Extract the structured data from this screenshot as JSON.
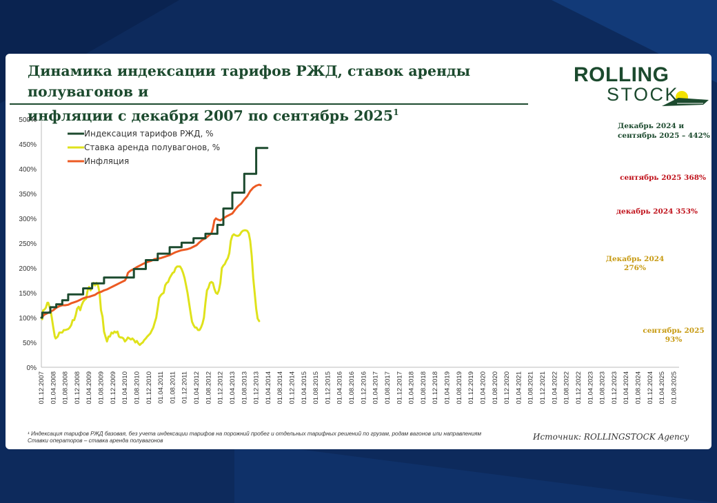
{
  "header": {
    "title_line1": "Динамика индексации тарифов РЖД, ставок аренды полувагонов и",
    "title_line2": "инфляции с декабря 2007 по сентябрь 2025",
    "title_sup": "1"
  },
  "logo": {
    "top": "ROLLING",
    "bottom": "STOCK"
  },
  "footnote": {
    "line1": "¹ Индексация тарифов РЖД базовая, без учета индексации тарифов на порожний пробег и отдельных тарифных решений по грузам, родам вагонов или направлениям",
    "line2": "Ставки операторов – ставка аренда полувагонов"
  },
  "source": "Источник: ROLLINGSTOCK Agency",
  "colors": {
    "tariff": "#1c4a2e",
    "rental": "#dfe21b",
    "inflation": "#ec5a23",
    "rental_label": "#c79a12",
    "inflation_label": "#c0131c"
  },
  "chart_data": {
    "type": "line",
    "title": "Динамика индексации тарифов РЖД, ставок аренды полувагонов и инфляции с декабря 2007 по сентябрь 2025",
    "xlabel": "",
    "ylabel": "",
    "ylim": [
      0,
      500
    ],
    "yticks": [
      "0%",
      "50%",
      "100%",
      "150%",
      "200%",
      "250%",
      "300%",
      "350%",
      "400%",
      "450%",
      "500%"
    ],
    "xticks": [
      "01.12.2007",
      "01.04.2008",
      "01.08.2008",
      "01.12.2008",
      "01.04.2009",
      "01.08.2009",
      "01.12.2009",
      "01.04.2010",
      "01.08.2010",
      "01.12.2010",
      "01.04.2011",
      "01.08.2011",
      "01.12.2011",
      "01.04.2012",
      "01.08.2012",
      "01.12.2012",
      "01.04.2013",
      "01.08.2013",
      "01.12.2013",
      "01.04.2014",
      "01.08.2014",
      "01.12.2014",
      "01.04.2015",
      "01.08.2015",
      "01.12.2015",
      "01.04.2016",
      "01.08.2016",
      "01.12.2016",
      "01.04.2017",
      "01.08.2017",
      "01.12.2017",
      "01.04.2018",
      "01.08.2018",
      "01.12.2018",
      "01.04.2019",
      "01.08.2019",
      "01.12.2019",
      "01.04.2020",
      "01.08.2020",
      "01.12.2020",
      "01.04.2021",
      "01.08.2021",
      "01.12.2021",
      "01.04.2022",
      "01.08.2022",
      "01.12.2022",
      "01.04.2023",
      "01.08.2023",
      "01.12.2023",
      "01.04.2024",
      "01.08.2024",
      "01.12.2024",
      "01.04.2025",
      "01.08.2025"
    ],
    "legend_position": "top-left",
    "series": [
      {
        "name": "Индексация тарифов РЖД, %",
        "key": "tariff",
        "points": [
          [
            0,
            100
          ],
          [
            0.3,
            100
          ],
          [
            0.3,
            110
          ],
          [
            3,
            110
          ],
          [
            3,
            121
          ],
          [
            5,
            121
          ],
          [
            5,
            127
          ],
          [
            7,
            127
          ],
          [
            7,
            135
          ],
          [
            9,
            135
          ],
          [
            9,
            147
          ],
          [
            14,
            147
          ],
          [
            14,
            159
          ],
          [
            17,
            159
          ],
          [
            17,
            169
          ],
          [
            21,
            169
          ],
          [
            21,
            181
          ],
          [
            31,
            181
          ],
          [
            31,
            198
          ],
          [
            35,
            198
          ],
          [
            35,
            216
          ],
          [
            39,
            216
          ],
          [
            39,
            229
          ],
          [
            43,
            229
          ],
          [
            43,
            242
          ],
          [
            47,
            242
          ],
          [
            47,
            251
          ],
          [
            51,
            251
          ],
          [
            51,
            260
          ],
          [
            55,
            260
          ],
          [
            55,
            269
          ],
          [
            59,
            269
          ],
          [
            59,
            287
          ],
          [
            61,
            287
          ],
          [
            61,
            320
          ],
          [
            64,
            320
          ],
          [
            64,
            352
          ],
          [
            68,
            352
          ],
          [
            68,
            390
          ],
          [
            72,
            390
          ],
          [
            72,
            442
          ],
          [
            75.75,
            442
          ]
        ]
      },
      {
        "name": "Ставка аренда полувагонов, %",
        "key": "rental",
        "points": [
          [
            0,
            100
          ],
          [
            0.3,
            97
          ],
          [
            0.6,
            115
          ],
          [
            1,
            116
          ],
          [
            1.5,
            120
          ],
          [
            2,
            130
          ],
          [
            2.3,
            130
          ],
          [
            3,
            117
          ],
          [
            3.5,
            100
          ],
          [
            4,
            80
          ],
          [
            4.5,
            62
          ],
          [
            4.8,
            58
          ],
          [
            5.5,
            62
          ],
          [
            6,
            70
          ],
          [
            7,
            70
          ],
          [
            7.5,
            75
          ],
          [
            8,
            75
          ],
          [
            9,
            77
          ],
          [
            9.5,
            80
          ],
          [
            10,
            85
          ],
          [
            10.5,
            95
          ],
          [
            11,
            95
          ],
          [
            11.5,
            105
          ],
          [
            12,
            118
          ],
          [
            12.5,
            122
          ],
          [
            13,
            115
          ],
          [
            13.5,
            125
          ],
          [
            14,
            132
          ],
          [
            14.5,
            136
          ],
          [
            15,
            138
          ],
          [
            15.5,
            155
          ],
          [
            16,
            162
          ],
          [
            16.5,
            155
          ],
          [
            17,
            162
          ],
          [
            17.5,
            170
          ],
          [
            18,
            165
          ],
          [
            18.5,
            170
          ],
          [
            19,
            165
          ],
          [
            19.5,
            150
          ],
          [
            20,
            115
          ],
          [
            20.5,
            102
          ],
          [
            21,
            72
          ],
          [
            21.5,
            62
          ],
          [
            22,
            52
          ],
          [
            22.5,
            62
          ],
          [
            23,
            62
          ],
          [
            23.5,
            70
          ],
          [
            24,
            68
          ],
          [
            24.5,
            72
          ],
          [
            25,
            70
          ],
          [
            25.5,
            72
          ],
          [
            26,
            62
          ],
          [
            26.5,
            60
          ],
          [
            27,
            60
          ],
          [
            27.5,
            58
          ],
          [
            28,
            52
          ],
          [
            28.5,
            55
          ],
          [
            29,
            60
          ],
          [
            29.5,
            58
          ],
          [
            30,
            56
          ],
          [
            30.5,
            58
          ],
          [
            31,
            55
          ],
          [
            31.5,
            50
          ],
          [
            32,
            53
          ],
          [
            32.5,
            48
          ],
          [
            33,
            45
          ],
          [
            33.5,
            48
          ],
          [
            34,
            50
          ],
          [
            34.5,
            55
          ],
          [
            35,
            58
          ],
          [
            35.5,
            62
          ],
          [
            36,
            65
          ],
          [
            36.5,
            68
          ],
          [
            37,
            74
          ],
          [
            37.5,
            80
          ],
          [
            38,
            90
          ],
          [
            38.5,
            100
          ],
          [
            39,
            120
          ],
          [
            39.5,
            140
          ],
          [
            40,
            145
          ],
          [
            40.5,
            148
          ],
          [
            41,
            150
          ],
          [
            41.5,
            165
          ],
          [
            42,
            170
          ],
          [
            42.5,
            172
          ],
          [
            43,
            180
          ],
          [
            43.5,
            185
          ],
          [
            44,
            190
          ],
          [
            44.5,
            192
          ],
          [
            45,
            200
          ],
          [
            45.5,
            203
          ],
          [
            46,
            203
          ],
          [
            46.5,
            203
          ],
          [
            47,
            198
          ],
          [
            47.5,
            190
          ],
          [
            48,
            180
          ],
          [
            48.5,
            165
          ],
          [
            49,
            150
          ],
          [
            49.5,
            130
          ],
          [
            50,
            110
          ],
          [
            50.5,
            92
          ],
          [
            51,
            85
          ],
          [
            51.5,
            80
          ],
          [
            52,
            80
          ],
          [
            52.5,
            75
          ],
          [
            53,
            75
          ],
          [
            53.5,
            80
          ],
          [
            54,
            88
          ],
          [
            54.5,
            100
          ],
          [
            55,
            130
          ],
          [
            55.5,
            155
          ],
          [
            56,
            160
          ],
          [
            56.5,
            170
          ],
          [
            57,
            172
          ],
          [
            57.5,
            170
          ],
          [
            58,
            158
          ],
          [
            58.5,
            150
          ],
          [
            59,
            148
          ],
          [
            59.5,
            155
          ],
          [
            60,
            170
          ],
          [
            60.5,
            200
          ],
          [
            61,
            205
          ],
          [
            61.5,
            208
          ],
          [
            62,
            215
          ],
          [
            62.5,
            220
          ],
          [
            63,
            230
          ],
          [
            63.5,
            255
          ],
          [
            64,
            265
          ],
          [
            64.5,
            268
          ],
          [
            65,
            266
          ],
          [
            65.5,
            265
          ],
          [
            66,
            265
          ],
          [
            66.5,
            267
          ],
          [
            67,
            272
          ],
          [
            67.5,
            275
          ],
          [
            68,
            276
          ],
          [
            68.5,
            276
          ],
          [
            69,
            275
          ],
          [
            69.5,
            270
          ],
          [
            70,
            255
          ],
          [
            70.5,
            225
          ],
          [
            71,
            180
          ],
          [
            71.5,
            150
          ],
          [
            72,
            118
          ],
          [
            72.5,
            98
          ],
          [
            73,
            93
          ]
        ]
      },
      {
        "name": "Инфляция",
        "key": "inflation",
        "points": [
          [
            0,
            100
          ],
          [
            1,
            106
          ],
          [
            2,
            109
          ],
          [
            3,
            112
          ],
          [
            4,
            115
          ],
          [
            5,
            120
          ],
          [
            6,
            123
          ],
          [
            7,
            125
          ],
          [
            8,
            125
          ],
          [
            9,
            126
          ],
          [
            10,
            129
          ],
          [
            11,
            131
          ],
          [
            12,
            133
          ],
          [
            13,
            136
          ],
          [
            14,
            139
          ],
          [
            15,
            141
          ],
          [
            16,
            142
          ],
          [
            17,
            144
          ],
          [
            18,
            146
          ],
          [
            19,
            150
          ],
          [
            20,
            152
          ],
          [
            21,
            155
          ],
          [
            22,
            157
          ],
          [
            23,
            160
          ],
          [
            24,
            163
          ],
          [
            25,
            166
          ],
          [
            26,
            169
          ],
          [
            27,
            172
          ],
          [
            28,
            175
          ],
          [
            28.5,
            180
          ],
          [
            29,
            190
          ],
          [
            29.5,
            193
          ],
          [
            30,
            195
          ],
          [
            31,
            198
          ],
          [
            32,
            202
          ],
          [
            33,
            205
          ],
          [
            34,
            208
          ],
          [
            35,
            211
          ],
          [
            36,
            213
          ],
          [
            37,
            215
          ],
          [
            38,
            218
          ],
          [
            39,
            219
          ],
          [
            40,
            220
          ],
          [
            41,
            222
          ],
          [
            42,
            224
          ],
          [
            43,
            226
          ],
          [
            44,
            229
          ],
          [
            45,
            232
          ],
          [
            46,
            234
          ],
          [
            47,
            236
          ],
          [
            48,
            237
          ],
          [
            49,
            238
          ],
          [
            50,
            240
          ],
          [
            51,
            243
          ],
          [
            52,
            246
          ],
          [
            53,
            252
          ],
          [
            54,
            257
          ],
          [
            55,
            260
          ],
          [
            56,
            265
          ],
          [
            57,
            270
          ],
          [
            57.5,
            280
          ],
          [
            58,
            296
          ],
          [
            58.5,
            300
          ],
          [
            59,
            298
          ],
          [
            60,
            296
          ],
          [
            61,
            300
          ],
          [
            62,
            304
          ],
          [
            63,
            307
          ],
          [
            64,
            310
          ],
          [
            65,
            318
          ],
          [
            66,
            325
          ],
          [
            67,
            330
          ],
          [
            68,
            338
          ],
          [
            69,
            345
          ],
          [
            70,
            355
          ],
          [
            71,
            362
          ],
          [
            72,
            366
          ],
          [
            73,
            368
          ],
          [
            73.5,
            367
          ]
        ]
      }
    ],
    "annotations": {
      "tariff_end": [
        "Декабрь 2024 и",
        "сентябрь 2025 – 442%"
      ],
      "inflation_sep2025": "сентябрь 2025 368%",
      "inflation_dec2024": "декабрь 2024 353%",
      "rental_dec2024": [
        "Декабрь 2024",
        "276%"
      ],
      "rental_sep2025": [
        "сентябрь 2025",
        "93%"
      ]
    }
  }
}
